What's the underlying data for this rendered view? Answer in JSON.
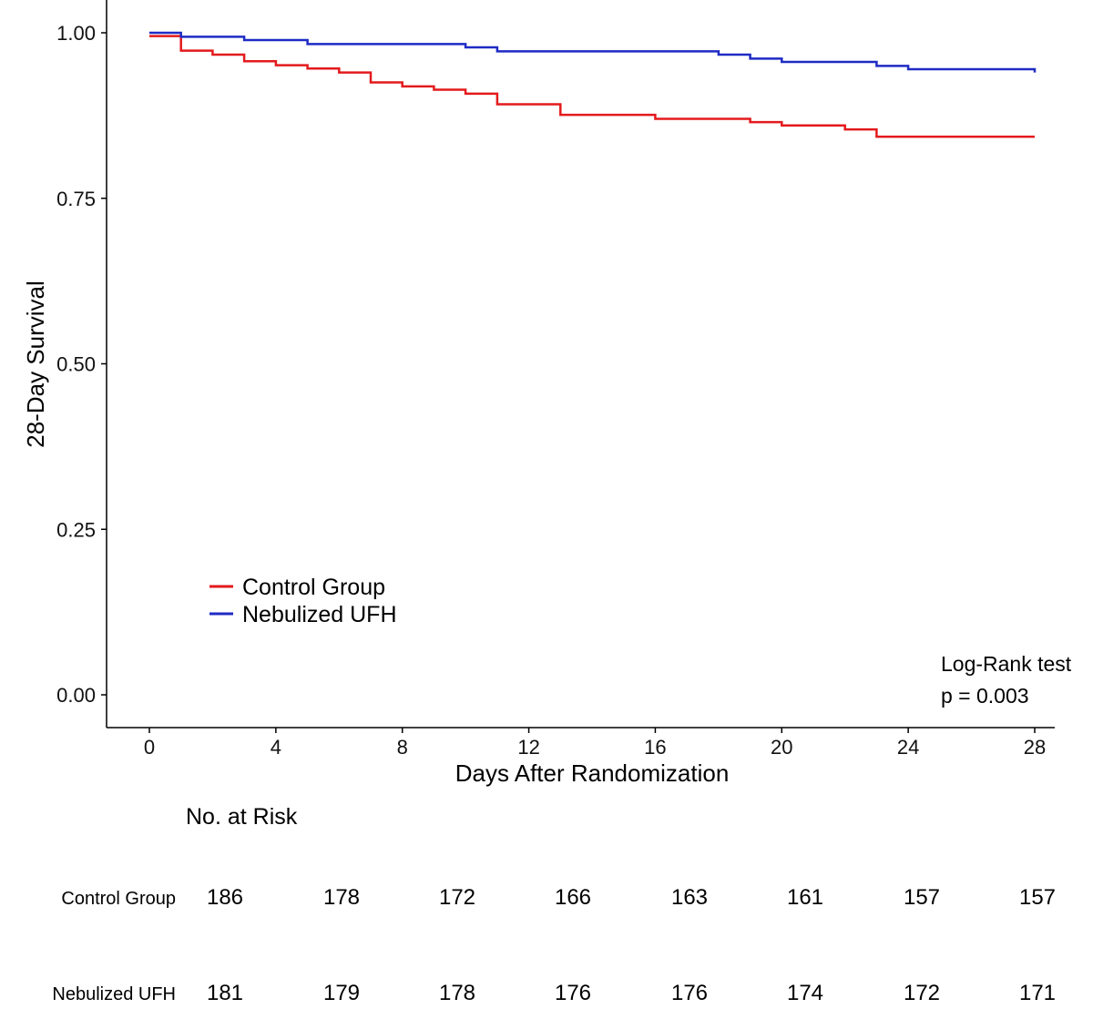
{
  "chart_data": {
    "type": "line",
    "step": true,
    "xlabel": "Days After Randomization",
    "ylabel": "28-Day Survival",
    "xlim": [
      0,
      28
    ],
    "ylim": [
      0,
      1
    ],
    "x_ticks": [
      0,
      4,
      8,
      12,
      16,
      20,
      24,
      28
    ],
    "x_tick_labels": [
      "0",
      "4",
      "8",
      "12",
      "16",
      "20",
      "24",
      "28"
    ],
    "y_ticks": [
      0,
      0.25,
      0.5,
      0.75,
      1.0
    ],
    "y_tick_labels": [
      "0.00",
      "0.25",
      "0.50",
      "0.75",
      "1.00"
    ],
    "grid": false,
    "legend_position": "bottom-left",
    "series": [
      {
        "name": "Control Group",
        "color": "#e31a1c",
        "points": [
          [
            0,
            0.995
          ],
          [
            1,
            0.973
          ],
          [
            2,
            0.967
          ],
          [
            3,
            0.957
          ],
          [
            4,
            0.951
          ],
          [
            5,
            0.946
          ],
          [
            6,
            0.94
          ],
          [
            7,
            0.925
          ],
          [
            8,
            0.919
          ],
          [
            9,
            0.914
          ],
          [
            10,
            0.908
          ],
          [
            11,
            0.892
          ],
          [
            13,
            0.876
          ],
          [
            16,
            0.87
          ],
          [
            19,
            0.865
          ],
          [
            20,
            0.86
          ],
          [
            22,
            0.854
          ],
          [
            23,
            0.843
          ],
          [
            28,
            0.843
          ]
        ]
      },
      {
        "name": "Nebulized UFH",
        "color": "#1f2bc4",
        "points": [
          [
            0,
            1.0
          ],
          [
            1,
            0.994
          ],
          [
            3,
            0.989
          ],
          [
            5,
            0.983
          ],
          [
            10,
            0.978
          ],
          [
            11,
            0.972
          ],
          [
            18,
            0.967
          ],
          [
            19,
            0.961
          ],
          [
            20,
            0.956
          ],
          [
            23,
            0.95
          ],
          [
            24,
            0.945
          ],
          [
            28,
            0.94
          ]
        ]
      }
    ],
    "annotations": {
      "test_name": "Log-Rank test",
      "p_value": "p = 0.003"
    },
    "risk_table": {
      "title": "No. at Risk",
      "rows": [
        {
          "label": "Control Group",
          "values": [
            "186",
            "178",
            "172",
            "166",
            "163",
            "161",
            "157",
            "157"
          ]
        },
        {
          "label": "Nebulized UFH",
          "values": [
            "181",
            "179",
            "178",
            "176",
            "176",
            "174",
            "172",
            "171"
          ]
        }
      ]
    }
  }
}
